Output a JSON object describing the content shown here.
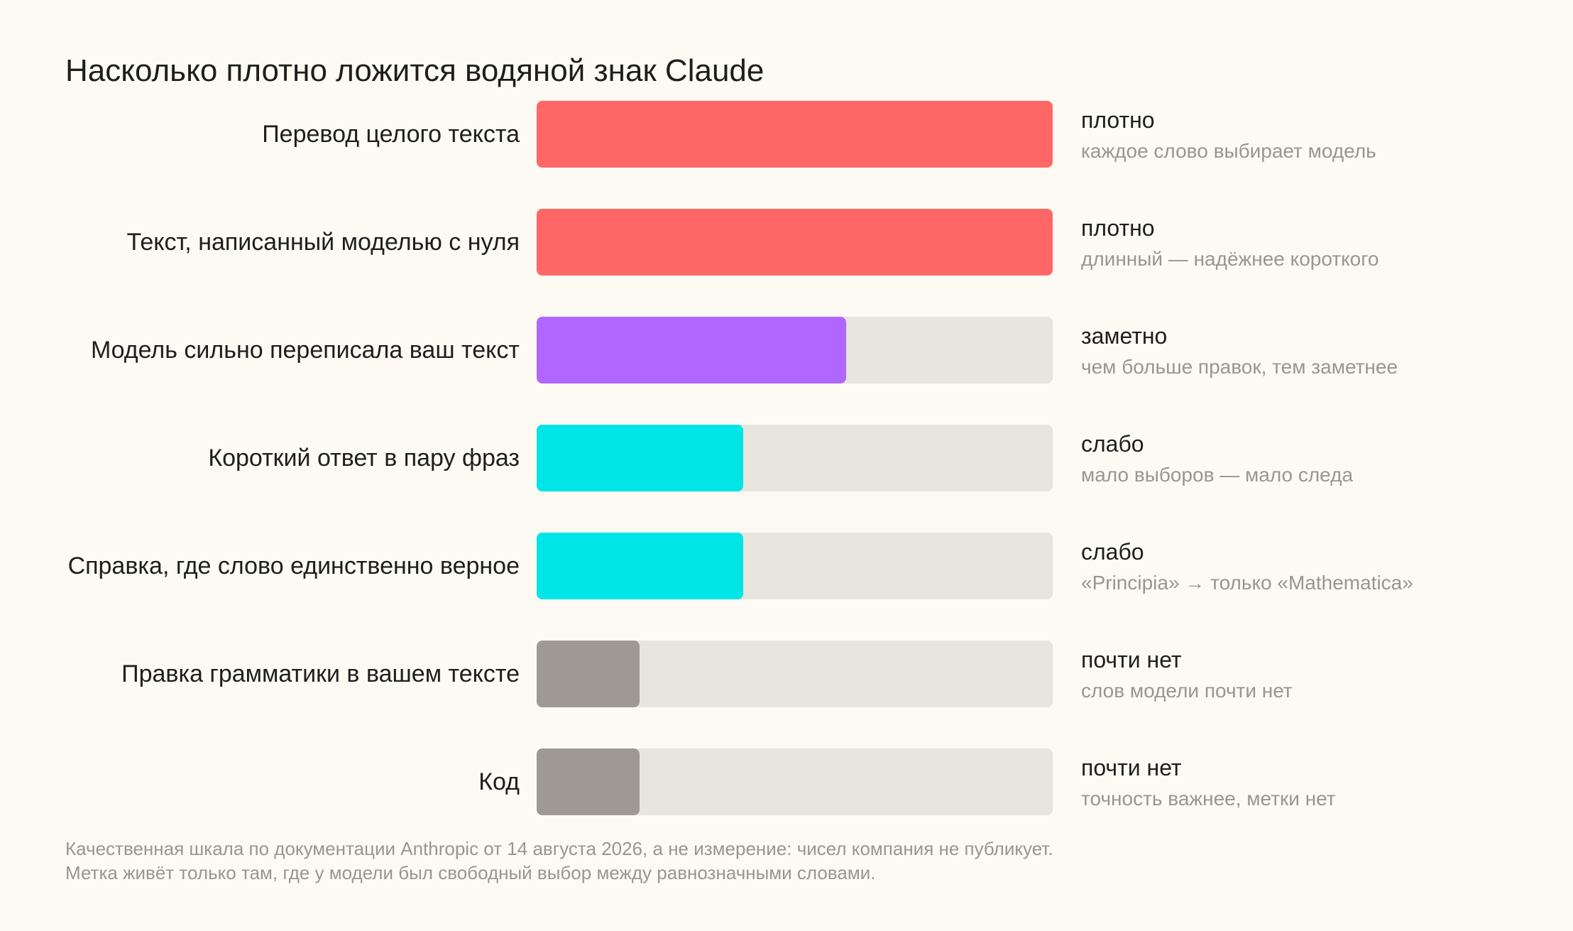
{
  "chart_data": {
    "type": "bar",
    "orientation": "horizontal",
    "title": "Насколько плотно ложится водяной знак Claude",
    "xlim": [
      0,
      1
    ],
    "categories": [
      "Перевод целого текста",
      "Текст, написанный моделью с нуля",
      "Модель сильно переписала ваш текст",
      "Короткий ответ в пару фраз",
      "Справка, где слово единственно верное",
      "Правка грамматики в вашем тексте",
      "Код"
    ],
    "values": [
      1.0,
      1.0,
      0.6,
      0.4,
      0.4,
      0.2,
      0.2
    ],
    "levels": [
      "плотно",
      "плотно",
      "заметно",
      "слабо",
      "слабо",
      "почти нет",
      "почти нет"
    ],
    "notes": [
      "каждое слово выбирает модель",
      "длинный — надёжнее короткого",
      "чем больше правок, тем заметнее",
      "мало выборов — мало следа",
      "«Principia» → только «Mathematica»",
      "слов модели почти нет",
      "точность важнее, метки нет"
    ],
    "colors": [
      "#ff6666",
      "#ff6666",
      "#b066ff",
      "#00e5e5",
      "#00e5e5",
      "#9e9a93",
      "#9e9a93"
    ],
    "track_color": "#e8e4de",
    "grid": false,
    "legend": "none"
  },
  "footnotes": [
    "Качественная шкала по документации Anthropic от 14 августа 2026, а не измерение: чисел компания не публикует.",
    "Метка живёт только там, где у модели был свободный выбор между равнозначными словами."
  ]
}
